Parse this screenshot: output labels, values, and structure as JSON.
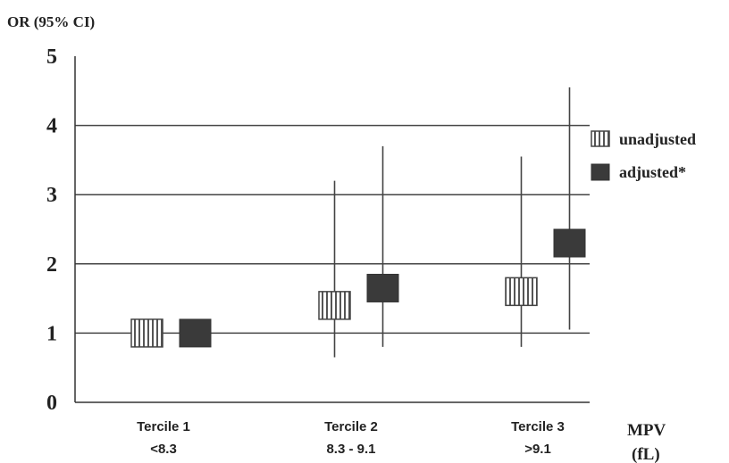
{
  "chart_data": {
    "type": "scatter",
    "ylabel": "OR (95% CI)",
    "xlabel": "MPV",
    "xlabel_unit": "(fL)",
    "ylim": [
      0,
      5
    ],
    "yticks": [
      "0",
      "1",
      "2",
      "3",
      "4",
      "5"
    ],
    "grid": true,
    "categories": [
      {
        "name": "Tercile 1",
        "range": "<8.3"
      },
      {
        "name": "Tercile 2",
        "range": "8.3 - 9.1"
      },
      {
        "name": "Tercile 3",
        "range": ">9.1"
      }
    ],
    "series": [
      {
        "name": "unadjusted",
        "marker": "hatched-square",
        "points": [
          {
            "or": 1.0,
            "ci_low": null,
            "ci_high": null
          },
          {
            "or": 1.4,
            "ci_low": 0.65,
            "ci_high": 3.2
          },
          {
            "or": 1.6,
            "ci_low": 0.8,
            "ci_high": 3.55
          }
        ]
      },
      {
        "name": "adjusted*",
        "marker": "solid-square",
        "points": [
          {
            "or": 1.0,
            "ci_low": null,
            "ci_high": null
          },
          {
            "or": 1.65,
            "ci_low": 0.8,
            "ci_high": 3.7
          },
          {
            "or": 2.3,
            "ci_low": 1.05,
            "ci_high": 4.55
          }
        ]
      }
    ],
    "legend_position": "top-right",
    "colors": {
      "solid": "#3a3a3a",
      "hatch": "#555555",
      "grid": "#444444"
    }
  }
}
